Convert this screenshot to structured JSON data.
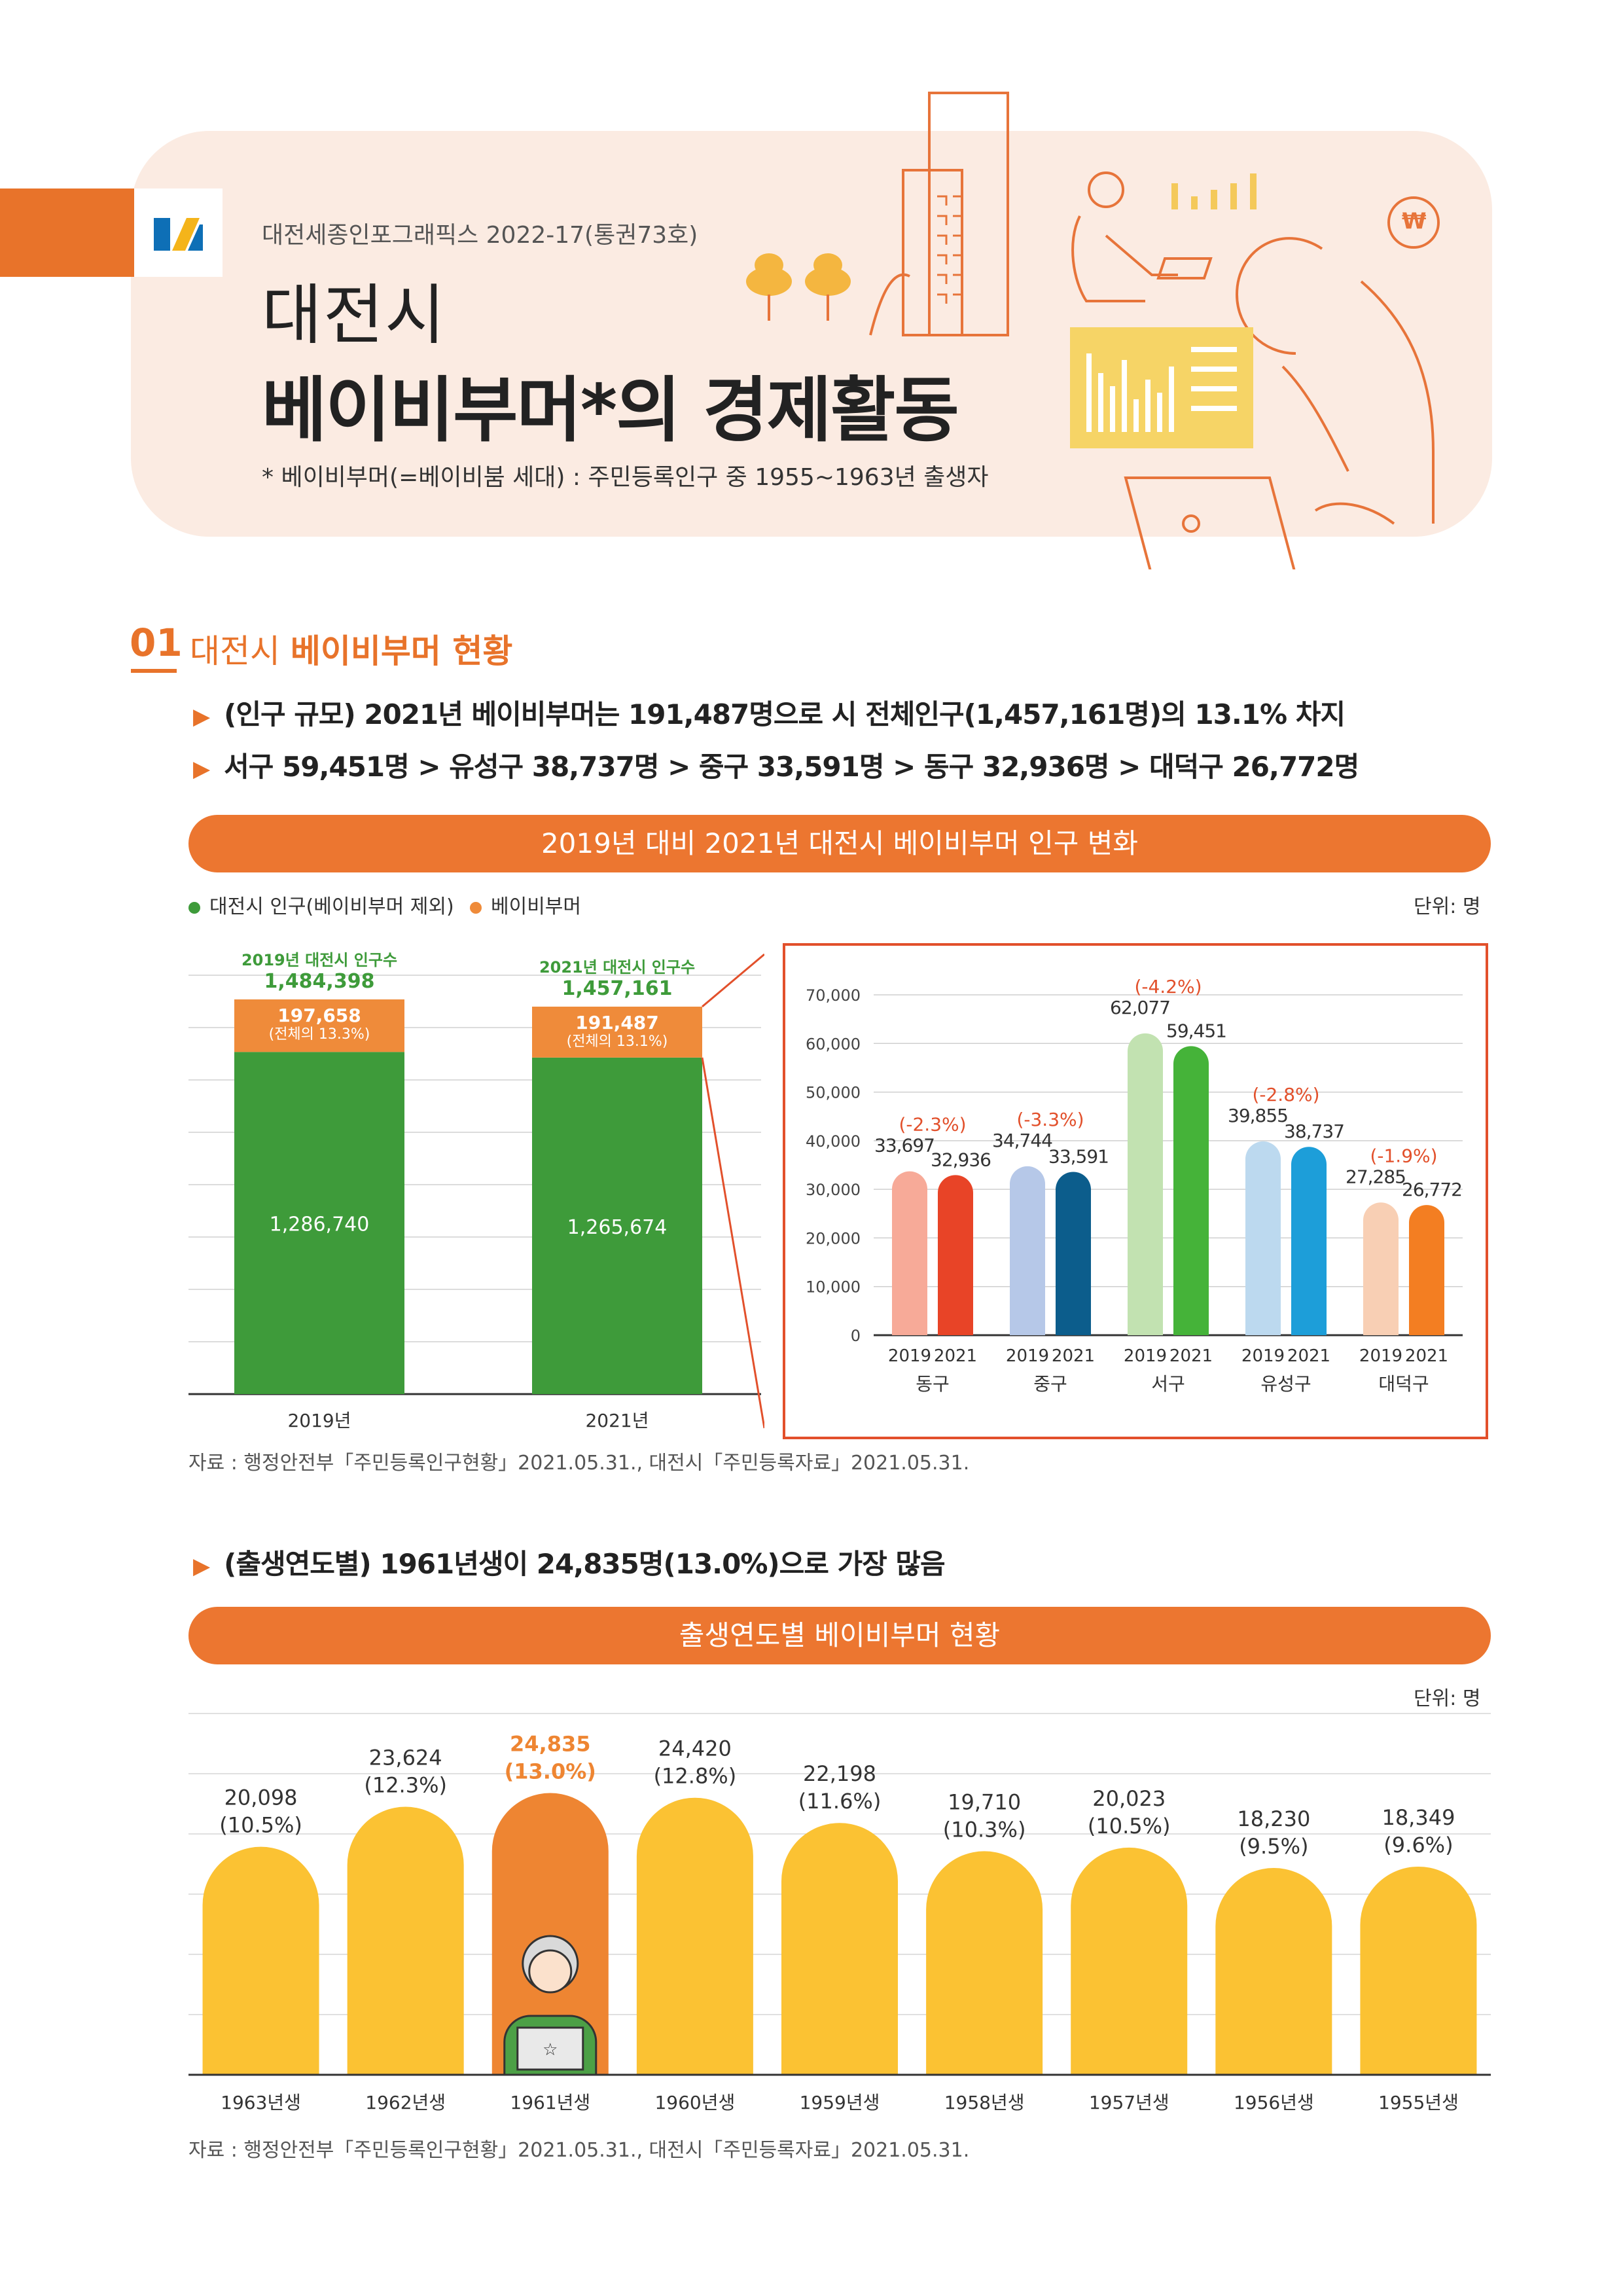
{
  "header": {
    "series": "대전세종인포그래픽스 2022-17(통권73호)",
    "title_line1": "대전시",
    "title_line2": "베이비부머*의 경제활동",
    "note": "* 베이비부머(=베이비붐 세대) : 주민등록인구 중 1955~1963년 출생자",
    "won_symbol": "₩"
  },
  "section1": {
    "number": "01",
    "title_light": "대전시 ",
    "title_bold": "베이비부머 현황",
    "bullet1": "(인구 규모) 2021년 베이비부머는 191,487명으로 시 전체인구(1,457,161명)의 13.1% 차지",
    "bullet2": "서구 59,451명 > 유성구 38,737명 > 중구 33,591명 > 동구 32,936명 > 대덕구 26,772명",
    "chart_title": "2019년 대비 2021년 대전시 베이비부머 인구 변화",
    "legend_non": "대전시 인구(베이비부머 제외)",
    "legend_boomer": "베이비부머",
    "unit": "단위: 명",
    "source": "자료 : 행정안전부「주민등록인구현황」2021.05.31., 대전시「주민등록자료」2021.05.31."
  },
  "section2": {
    "bullet": "(출생연도별) 1961년생이 24,835명(13.0%)으로 가장 많음",
    "chart_title": "출생연도별 베이비부머 현황",
    "unit": "단위: 명",
    "source": "자료 : 행정안전부「주민등록인구현황」2021.05.31., 대전시「주민등록자료」2021.05.31."
  },
  "colors": {
    "orange": "#ec7630",
    "green": "#3e9b3a",
    "boomer_orange": "#ef8b3a",
    "yellow": "#fbc233",
    "highlight": "#ee8532",
    "red_pct": "#e2502b"
  },
  "chart_data": [
    {
      "type": "bar",
      "title": "",
      "categories": [
        "2019년",
        "2021년"
      ],
      "top_labels": [
        "2019년 대전시 인구수",
        "2021년 대전시 인구수"
      ],
      "totals": [
        1484398,
        1457161
      ],
      "totals_text": [
        "1,484,398",
        "1,457,161"
      ],
      "series": [
        {
          "name": "대전시 인구(베이비부머 제외)",
          "values": [
            1286740,
            1265674
          ],
          "labels": [
            "1,286,740",
            "1,265,674"
          ]
        },
        {
          "name": "베이비부머",
          "values": [
            197658,
            191487
          ],
          "labels": [
            "197,658",
            "191,487"
          ],
          "share_labels": [
            "(전체의 13.3%)",
            "(전체의 13.1%)"
          ]
        }
      ]
    },
    {
      "type": "bar",
      "title": "",
      "categories": [
        "동구",
        "중구",
        "서구",
        "유성구",
        "대덕구"
      ],
      "years": [
        "2019",
        "2021"
      ],
      "ylim": [
        0,
        70000
      ],
      "yticks": [
        "0",
        "10,000",
        "20,000",
        "30,000",
        "40,000",
        "50,000",
        "60,000",
        "70,000"
      ],
      "series": [
        {
          "name": "2019",
          "values": [
            33697,
            34744,
            62077,
            39855,
            27285
          ],
          "labels": [
            "33,697",
            "34,744",
            "62,077",
            "39,855",
            "27,285"
          ]
        },
        {
          "name": "2021",
          "values": [
            32936,
            33591,
            59451,
            38737,
            26772
          ],
          "labels": [
            "32,936",
            "33,591",
            "59,451",
            "38,737",
            "26,772"
          ]
        }
      ],
      "changes": [
        "(-2.3%)",
        "(-3.3%)",
        "(-4.2%)",
        "(-2.8%)",
        "(-1.9%)"
      ],
      "colors_2019": [
        "#f7aa98",
        "#b6c8e8",
        "#c2e2b1",
        "#bcd9ef",
        "#f8cfb4"
      ],
      "colors_2021": [
        "#e84427",
        "#0c5d8c",
        "#45b339",
        "#1d9ed9",
        "#f37e22"
      ]
    },
    {
      "type": "bar",
      "title": "",
      "categories": [
        "1963년생",
        "1962년생",
        "1961년생",
        "1960년생",
        "1959년생",
        "1958년생",
        "1957년생",
        "1956년생",
        "1955년생"
      ],
      "values": [
        20098,
        23624,
        24835,
        24420,
        22198,
        19710,
        20023,
        18230,
        18349
      ],
      "value_labels": [
        "20,098",
        "23,624",
        "24,835",
        "24,420",
        "22,198",
        "19,710",
        "20,023",
        "18,230",
        "18,349"
      ],
      "pct_labels": [
        "(10.5%)",
        "(12.3%)",
        "(13.0%)",
        "(12.8%)",
        "(11.6%)",
        "(10.3%)",
        "(10.5%)",
        "(9.5%)",
        "(9.6%)"
      ],
      "highlight_index": 2
    }
  ]
}
